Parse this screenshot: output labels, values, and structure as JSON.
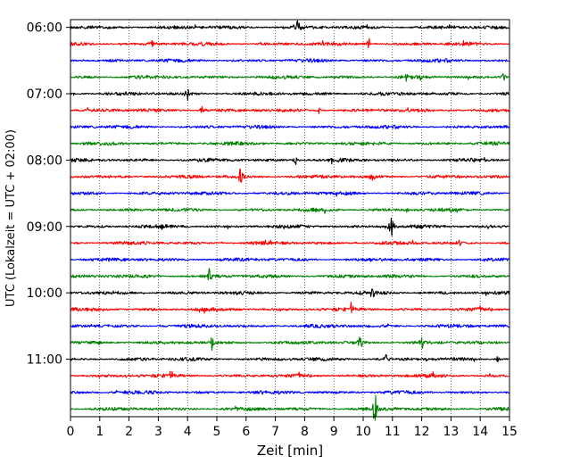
{
  "chart_data": {
    "type": "line",
    "xlabel": "Zeit  [min]",
    "ylabel": "UTC (Lokalzeit = UTC + 02:00)",
    "xlim": [
      0,
      15
    ],
    "xticks": [
      0,
      1,
      2,
      3,
      4,
      5,
      6,
      7,
      8,
      9,
      10,
      11,
      12,
      13,
      14,
      15
    ],
    "ylim_start": "05:53",
    "ylim_end": "11:52",
    "trace_interval_minutes": 15,
    "ytick_labels": [
      "06:00",
      "07:00",
      "08:00",
      "09:00",
      "10:00",
      "11:00"
    ],
    "grid": "vertical dotted lines at each minute",
    "series_colors": [
      "#000000",
      "#ff0000",
      "#0000ff",
      "#008000"
    ],
    "traces": [
      {
        "start": "06:00",
        "color": "#000000",
        "events": [
          {
            "x": 7.75,
            "amp": 7
          }
        ]
      },
      {
        "start": "06:15",
        "color": "#ff0000",
        "events": [
          {
            "x": 10.2,
            "amp": 5
          },
          {
            "x": 2.8,
            "amp": 3
          }
        ]
      },
      {
        "start": "06:30",
        "color": "#0000ff",
        "events": []
      },
      {
        "start": "06:45",
        "color": "#008000",
        "events": [
          {
            "x": 14.8,
            "amp": 5
          },
          {
            "x": 11.5,
            "amp": 3
          }
        ]
      },
      {
        "start": "07:00",
        "color": "#000000",
        "events": [
          {
            "x": 4.0,
            "amp": 6
          }
        ]
      },
      {
        "start": "07:15",
        "color": "#ff0000",
        "events": [
          {
            "x": 4.5,
            "amp": 4
          },
          {
            "x": 8.5,
            "amp": 3
          }
        ]
      },
      {
        "start": "07:30",
        "color": "#0000ff",
        "events": []
      },
      {
        "start": "07:45",
        "color": "#008000",
        "events": []
      },
      {
        "start": "08:00",
        "color": "#000000",
        "events": [
          {
            "x": 7.7,
            "amp": 4
          }
        ]
      },
      {
        "start": "08:15",
        "color": "#ff0000",
        "events": [
          {
            "x": 5.8,
            "amp": 7
          },
          {
            "x": 10.3,
            "amp": 4
          }
        ]
      },
      {
        "start": "08:30",
        "color": "#0000ff",
        "events": []
      },
      {
        "start": "08:45",
        "color": "#008000",
        "events": [
          {
            "x": 11.5,
            "amp": 3
          }
        ]
      },
      {
        "start": "09:00",
        "color": "#000000",
        "events": [
          {
            "x": 10.95,
            "amp": 10
          }
        ]
      },
      {
        "start": "09:15",
        "color": "#ff0000",
        "events": [
          {
            "x": 13.3,
            "amp": 3
          }
        ]
      },
      {
        "start": "09:30",
        "color": "#0000ff",
        "events": []
      },
      {
        "start": "09:45",
        "color": "#008000",
        "events": [
          {
            "x": 4.75,
            "amp": 6
          }
        ]
      },
      {
        "start": "10:00",
        "color": "#000000",
        "events": [
          {
            "x": 10.3,
            "amp": 7
          }
        ]
      },
      {
        "start": "10:15",
        "color": "#ff0000",
        "events": [
          {
            "x": 9.6,
            "amp": 6
          }
        ]
      },
      {
        "start": "10:30",
        "color": "#0000ff",
        "events": []
      },
      {
        "start": "10:45",
        "color": "#008000",
        "events": [
          {
            "x": 4.85,
            "amp": 7
          },
          {
            "x": 9.9,
            "amp": 6
          },
          {
            "x": 12.0,
            "amp": 5
          }
        ]
      },
      {
        "start": "11:00",
        "color": "#000000",
        "events": [
          {
            "x": 10.8,
            "amp": 4
          },
          {
            "x": 14.6,
            "amp": 3
          }
        ]
      },
      {
        "start": "11:15",
        "color": "#ff0000",
        "events": [
          {
            "x": 3.45,
            "amp": 5
          }
        ]
      },
      {
        "start": "11:30",
        "color": "#0000ff",
        "events": []
      },
      {
        "start": "11:45",
        "color": "#008000",
        "events": [
          {
            "x": 10.4,
            "amp": 13
          }
        ]
      }
    ]
  }
}
